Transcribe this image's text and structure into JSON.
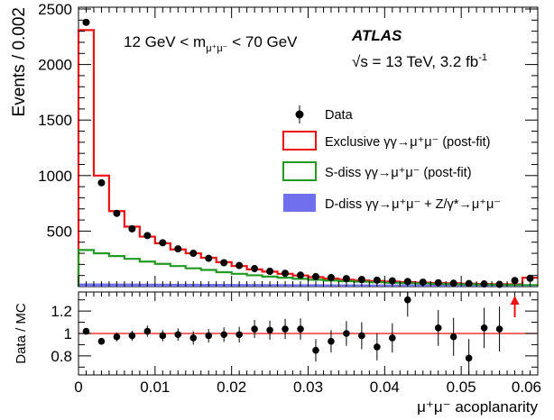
{
  "chart_data": [
    {
      "type": "histogram",
      "ylabel": "Events / 0.002",
      "ylim": [
        0,
        2500
      ],
      "yticks": [
        500,
        1000,
        1500,
        2000,
        2500
      ],
      "xlim": [
        0,
        0.06
      ],
      "bin_edges": [
        0,
        0.002,
        0.004,
        0.006,
        0.008,
        0.01,
        0.012,
        0.014,
        0.016,
        0.018,
        0.02,
        0.022,
        0.024,
        0.026,
        0.028,
        0.03,
        0.032,
        0.034,
        0.036,
        0.038,
        0.04,
        0.042,
        0.044,
        0.046,
        0.048,
        0.05,
        0.052,
        0.054,
        0.056,
        0.058,
        0.06
      ],
      "series": [
        {
          "name": "Data",
          "kind": "points",
          "color": "#000000",
          "values": [
            2380,
            935,
            660,
            520,
            460,
            395,
            340,
            300,
            255,
            215,
            190,
            162,
            138,
            120,
            103,
            90,
            82,
            72,
            64,
            58,
            52,
            46,
            40,
            35,
            30,
            27,
            24,
            20,
            55,
            75
          ]
        },
        {
          "name": "Exclusive γγ→μ⁺μ⁻ (post-fit)",
          "kind": "step",
          "color": "#ee1111",
          "values": [
            2310,
            1000,
            680,
            540,
            450,
            390,
            335,
            300,
            260,
            220,
            185,
            155,
            135,
            115,
            100,
            85,
            72,
            62,
            55,
            50,
            45,
            40,
            36,
            33,
            30,
            27,
            24,
            22,
            20,
            80
          ]
        },
        {
          "name": "S-diss γγ→μ⁺μ⁻ (post-fit)",
          "kind": "step",
          "color": "#229922",
          "values": [
            330,
            300,
            275,
            250,
            225,
            205,
            185,
            165,
            150,
            130,
            115,
            102,
            90,
            80,
            70,
            62,
            55,
            49,
            44,
            39,
            35,
            31,
            28,
            25,
            22,
            20,
            18,
            16,
            14,
            13
          ]
        },
        {
          "name": "D-diss γγ→μ⁺μ⁻ + Z/γ*→μ⁺μ⁻",
          "kind": "filled",
          "color": "#7070ee",
          "values": [
            28,
            28,
            27,
            27,
            26,
            26,
            25,
            25,
            24,
            24,
            23,
            23,
            22,
            22,
            21,
            21,
            20,
            20,
            20,
            19,
            19,
            19,
            18,
            18,
            18,
            17,
            17,
            17,
            16,
            16
          ]
        }
      ]
    },
    {
      "type": "ratio",
      "xlabel": "μ⁺μ⁻ acoplanarity",
      "ylabel": "Data / MC",
      "xlim": [
        0,
        0.06
      ],
      "ylim": [
        0.63,
        1.37
      ],
      "yticks": [
        0.8,
        1,
        1.2
      ],
      "xticks": [
        0,
        0.01,
        0.02,
        0.03,
        0.04,
        0.05,
        0.06
      ],
      "reference_line": 1,
      "x": [
        0.001,
        0.003,
        0.005,
        0.007,
        0.009,
        0.011,
        0.013,
        0.015,
        0.017,
        0.019,
        0.021,
        0.023,
        0.025,
        0.027,
        0.029,
        0.031,
        0.033,
        0.035,
        0.037,
        0.039,
        0.041,
        0.043,
        0.045,
        0.047,
        0.049,
        0.051,
        0.053,
        0.055,
        0.057,
        0.059
      ],
      "values": [
        1.02,
        0.93,
        0.97,
        0.98,
        1.02,
        0.98,
        0.99,
        0.96,
        0.98,
        0.99,
        0.99,
        1.04,
        1.03,
        1.04,
        1.04,
        0.85,
        0.93,
        1.0,
        0.98,
        0.88,
        0.96,
        1.3,
        null,
        1.05,
        0.97,
        0.78,
        1.05,
        1.04,
        null,
        null
      ],
      "errors": [
        0.02,
        0.03,
        0.04,
        0.045,
        0.05,
        0.05,
        0.055,
        0.06,
        0.06,
        0.065,
        0.07,
        0.08,
        0.085,
        0.09,
        0.095,
        0.1,
        0.1,
        0.11,
        0.12,
        0.12,
        0.13,
        0.15,
        null,
        0.16,
        0.17,
        0.17,
        0.18,
        0.2,
        null,
        null
      ],
      "arrow_x": 0.057
    }
  ],
  "texts": {
    "mass_range": "12 GeV < m",
    "mass_sub": "μ⁺μ⁻",
    "mass_range_end": " < 70 GeV",
    "experiment": "ATLAS",
    "energy": "√s = 13 TeV, 3.2 fb",
    "energy_sup": "-1"
  }
}
